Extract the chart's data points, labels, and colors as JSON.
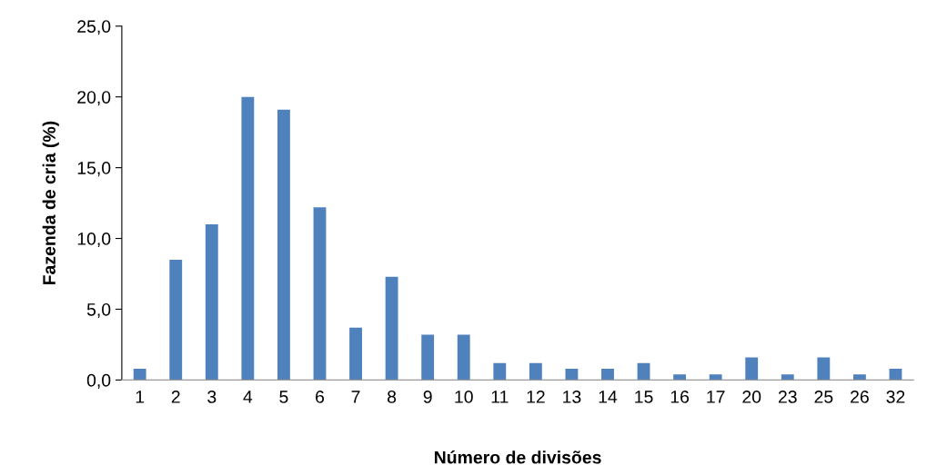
{
  "chart_data": {
    "type": "bar",
    "xlabel": "Número de divisões",
    "ylabel": "Fazenda de cria (%)",
    "categories": [
      "1",
      "2",
      "3",
      "4",
      "5",
      "6",
      "7",
      "8",
      "9",
      "10",
      "11",
      "12",
      "13",
      "14",
      "15",
      "16",
      "17",
      "20",
      "23",
      "25",
      "26",
      "32"
    ],
    "values": [
      0.8,
      8.5,
      11.0,
      20.0,
      19.1,
      12.2,
      3.7,
      7.3,
      3.2,
      3.2,
      1.2,
      1.2,
      0.8,
      0.8,
      1.2,
      0.4,
      0.4,
      1.6,
      0.4,
      1.6,
      0.4,
      0.8
    ],
    "color": "#4f81bd",
    "ylim": [
      0,
      25
    ],
    "yticks": [
      {
        "value": 0,
        "label": "0,0"
      },
      {
        "value": 5,
        "label": "5,0"
      },
      {
        "value": 10,
        "label": "10,0"
      },
      {
        "value": 15,
        "label": "15,0"
      },
      {
        "value": 20,
        "label": "20,0"
      },
      {
        "value": 25,
        "label": "25,0"
      }
    ],
    "grid": false,
    "legend": false
  }
}
